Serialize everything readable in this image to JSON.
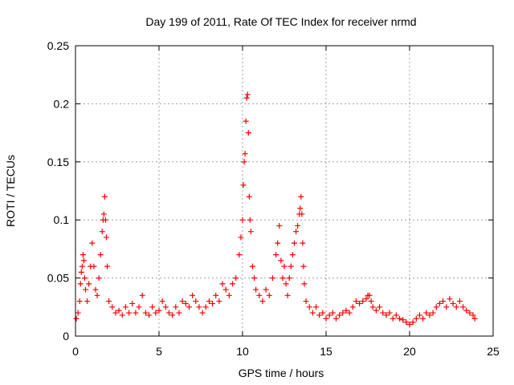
{
  "chart_data": {
    "type": "scatter",
    "title": "Day 199 of 2011, Rate Of TEC Index for receiver nrmd",
    "xlabel": "GPS time / hours",
    "ylabel": "ROTI / TECUs",
    "xlim": [
      0,
      25
    ],
    "ylim": [
      0,
      0.25
    ],
    "xticks": [
      "0",
      "5",
      "10",
      "15",
      "20",
      "25"
    ],
    "yticks": [
      "0",
      "0.05",
      "0.1",
      "0.15",
      "0.2",
      "0.25"
    ],
    "xtick_values": [
      0,
      5,
      10,
      15,
      20,
      25
    ],
    "ytick_values": [
      0,
      0.05,
      0.1,
      0.15,
      0.2,
      0.25
    ],
    "grid": true,
    "legend": "none",
    "marker": "plus",
    "color": "#ff0000",
    "series": [
      {
        "x": [
          0.05,
          0.15,
          0.25,
          0.3,
          0.35,
          0.4,
          0.45,
          0.5,
          0.55,
          0.6,
          0.7,
          0.8,
          0.9,
          1.0,
          1.1,
          1.2,
          1.3,
          1.4,
          1.5,
          1.6,
          1.65,
          1.7,
          1.75,
          1.8,
          1.85,
          1.9,
          2.0,
          2.2,
          2.4,
          2.6,
          2.8,
          3.0,
          3.2,
          3.4,
          3.6,
          3.8,
          4.0,
          4.2,
          4.4,
          4.6,
          4.8,
          5.0,
          5.2,
          5.4,
          5.6,
          5.8,
          6.0,
          6.2,
          6.4,
          6.6,
          6.8,
          7.0,
          7.2,
          7.4,
          7.6,
          7.8,
          8.0,
          8.2,
          8.4,
          8.6,
          8.8,
          9.0,
          9.2,
          9.4,
          9.6,
          9.8,
          9.9,
          10.0,
          10.05,
          10.1,
          10.15,
          10.2,
          10.25,
          10.3,
          10.35,
          10.4,
          10.45,
          10.5,
          10.6,
          10.7,
          10.8,
          11.0,
          11.2,
          11.4,
          11.6,
          11.8,
          12.0,
          12.1,
          12.2,
          12.3,
          12.4,
          12.5,
          12.6,
          12.7,
          12.8,
          12.9,
          13.0,
          13.1,
          13.2,
          13.3,
          13.4,
          13.45,
          13.5,
          13.55,
          13.6,
          13.65,
          13.7,
          13.8,
          14.0,
          14.2,
          14.4,
          14.6,
          14.8,
          15.0,
          15.2,
          15.4,
          15.6,
          15.8,
          16.0,
          16.2,
          16.4,
          16.6,
          16.8,
          17.0,
          17.2,
          17.4,
          17.5,
          17.6,
          17.7,
          17.8,
          18.0,
          18.2,
          18.4,
          18.6,
          18.8,
          19.0,
          19.2,
          19.4,
          19.6,
          19.8,
          20.0,
          20.2,
          20.4,
          20.6,
          20.8,
          21.0,
          21.2,
          21.4,
          21.6,
          21.8,
          22.0,
          22.2,
          22.4,
          22.6,
          22.8,
          23.0,
          23.2,
          23.4,
          23.6,
          23.8,
          23.9
        ],
        "y": [
          0.015,
          0.02,
          0.03,
          0.045,
          0.055,
          0.06,
          0.07,
          0.065,
          0.05,
          0.04,
          0.03,
          0.045,
          0.06,
          0.08,
          0.06,
          0.04,
          0.035,
          0.05,
          0.07,
          0.09,
          0.1,
          0.105,
          0.12,
          0.1,
          0.085,
          0.06,
          0.03,
          0.025,
          0.02,
          0.022,
          0.018,
          0.025,
          0.02,
          0.028,
          0.02,
          0.025,
          0.035,
          0.02,
          0.018,
          0.025,
          0.02,
          0.022,
          0.03,
          0.025,
          0.02,
          0.018,
          0.025,
          0.02,
          0.03,
          0.028,
          0.025,
          0.035,
          0.03,
          0.025,
          0.02,
          0.025,
          0.03,
          0.028,
          0.035,
          0.03,
          0.045,
          0.04,
          0.035,
          0.045,
          0.05,
          0.07,
          0.085,
          0.1,
          0.13,
          0.15,
          0.157,
          0.185,
          0.205,
          0.208,
          0.175,
          0.12,
          0.1,
          0.09,
          0.06,
          0.05,
          0.04,
          0.035,
          0.03,
          0.04,
          0.035,
          0.05,
          0.07,
          0.08,
          0.095,
          0.065,
          0.05,
          0.06,
          0.045,
          0.035,
          0.05,
          0.06,
          0.07,
          0.08,
          0.09,
          0.095,
          0.105,
          0.11,
          0.12,
          0.105,
          0.08,
          0.06,
          0.045,
          0.03,
          0.025,
          0.02,
          0.025,
          0.018,
          0.02,
          0.015,
          0.018,
          0.02,
          0.015,
          0.018,
          0.02,
          0.022,
          0.02,
          0.025,
          0.03,
          0.028,
          0.03,
          0.032,
          0.035,
          0.035,
          0.03,
          0.025,
          0.022,
          0.025,
          0.02,
          0.018,
          0.02,
          0.015,
          0.018,
          0.015,
          0.014,
          0.012,
          0.01,
          0.012,
          0.015,
          0.018,
          0.015,
          0.02,
          0.018,
          0.02,
          0.025,
          0.028,
          0.03,
          0.025,
          0.032,
          0.028,
          0.025,
          0.03,
          0.025,
          0.022,
          0.02,
          0.018,
          0.015
        ]
      }
    ]
  }
}
